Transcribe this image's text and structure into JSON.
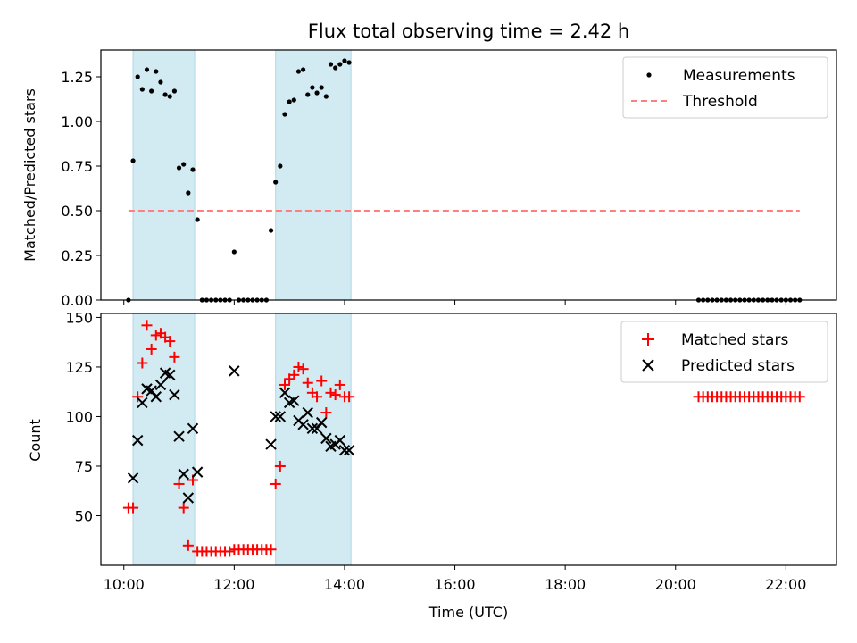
{
  "chart_data": [
    {
      "type": "scatter",
      "title": "Flux total observing time = 2.42 h",
      "xlabel": "",
      "ylabel": "Matched/Predicted stars",
      "xlim": [
        "09:35",
        "22:55"
      ],
      "ylim": [
        0,
        1.4
      ],
      "yticks": [
        0.0,
        0.25,
        0.5,
        0.75,
        1.0,
        1.25
      ],
      "ytick_labels": [
        "0.00",
        "0.25",
        "0.50",
        "0.75",
        "1.00",
        "1.25"
      ],
      "shaded_intervals": [
        [
          "10:10",
          "11:17"
        ],
        [
          "12:45",
          "14:07"
        ]
      ],
      "threshold": {
        "value": 0.5,
        "from": "10:05",
        "to": "22:15"
      },
      "legend": {
        "position": "upper right",
        "entries": [
          "Measurements",
          "Threshold"
        ]
      },
      "series": [
        {
          "name": "Measurements",
          "marker": "dot",
          "color": "#000000",
          "points": [
            [
              "10:05",
              0.0
            ],
            [
              "10:10",
              0.78
            ],
            [
              "10:15",
              1.25
            ],
            [
              "10:20",
              1.18
            ],
            [
              "10:25",
              1.29
            ],
            [
              "10:30",
              1.17
            ],
            [
              "10:35",
              1.28
            ],
            [
              "10:40",
              1.22
            ],
            [
              "10:45",
              1.15
            ],
            [
              "10:50",
              1.14
            ],
            [
              "10:55",
              1.17
            ],
            [
              "11:00",
              0.74
            ],
            [
              "11:05",
              0.76
            ],
            [
              "11:10",
              0.6
            ],
            [
              "11:15",
              0.73
            ],
            [
              "11:20",
              0.45
            ],
            [
              "11:25",
              0.0
            ],
            [
              "11:30",
              0.0
            ],
            [
              "11:35",
              0.0
            ],
            [
              "11:40",
              0.0
            ],
            [
              "11:45",
              0.0
            ],
            [
              "11:50",
              0.0
            ],
            [
              "11:55",
              0.0
            ],
            [
              "12:00",
              0.27
            ],
            [
              "12:05",
              0.0
            ],
            [
              "12:10",
              0.0
            ],
            [
              "12:15",
              0.0
            ],
            [
              "12:20",
              0.0
            ],
            [
              "12:25",
              0.0
            ],
            [
              "12:30",
              0.0
            ],
            [
              "12:35",
              0.0
            ],
            [
              "12:40",
              0.39
            ],
            [
              "12:45",
              0.66
            ],
            [
              "12:50",
              0.75
            ],
            [
              "12:55",
              1.04
            ],
            [
              "13:00",
              1.11
            ],
            [
              "13:05",
              1.12
            ],
            [
              "13:10",
              1.28
            ],
            [
              "13:15",
              1.29
            ],
            [
              "13:20",
              1.15
            ],
            [
              "13:25",
              1.19
            ],
            [
              "13:30",
              1.16
            ],
            [
              "13:35",
              1.19
            ],
            [
              "13:40",
              1.14
            ],
            [
              "13:45",
              1.32
            ],
            [
              "13:50",
              1.3
            ],
            [
              "13:55",
              1.32
            ],
            [
              "14:00",
              1.34
            ],
            [
              "14:05",
              1.33
            ],
            [
              "20:25",
              0.0
            ],
            [
              "20:30",
              0.0
            ],
            [
              "20:35",
              0.0
            ],
            [
              "20:40",
              0.0
            ],
            [
              "20:45",
              0.0
            ],
            [
              "20:50",
              0.0
            ],
            [
              "20:55",
              0.0
            ],
            [
              "21:00",
              0.0
            ],
            [
              "21:05",
              0.0
            ],
            [
              "21:10",
              0.0
            ],
            [
              "21:15",
              0.0
            ],
            [
              "21:20",
              0.0
            ],
            [
              "21:25",
              0.0
            ],
            [
              "21:30",
              0.0
            ],
            [
              "21:35",
              0.0
            ],
            [
              "21:40",
              0.0
            ],
            [
              "21:45",
              0.0
            ],
            [
              "21:50",
              0.0
            ],
            [
              "21:55",
              0.0
            ],
            [
              "22:00",
              0.0
            ],
            [
              "22:05",
              0.0
            ],
            [
              "22:10",
              0.0
            ],
            [
              "22:15",
              0.0
            ]
          ]
        }
      ],
      "colors": {
        "measurements": "#000000",
        "threshold": "#ff7f7f",
        "shade": "#add8e6"
      }
    },
    {
      "type": "scatter",
      "title": "",
      "xlabel": "Time (UTC)",
      "ylabel": "Count",
      "xlim": [
        "09:35",
        "22:55"
      ],
      "ylim": [
        25,
        152
      ],
      "yticks": [
        50,
        75,
        100,
        125,
        150
      ],
      "ytick_labels": [
        "50",
        "75",
        "100",
        "125",
        "150"
      ],
      "xticks": [
        "10:00",
        "12:00",
        "14:00",
        "16:00",
        "18:00",
        "20:00",
        "22:00"
      ],
      "xtick_labels": [
        "10:00",
        "12:00",
        "14:00",
        "16:00",
        "18:00",
        "20:00",
        "22:00"
      ],
      "shaded_intervals": [
        [
          "10:10",
          "11:17"
        ],
        [
          "12:45",
          "14:07"
        ]
      ],
      "legend": {
        "position": "upper right",
        "entries": [
          "Matched stars",
          "Predicted stars"
        ]
      },
      "series": [
        {
          "name": "Matched stars",
          "marker": "plus",
          "color": "#ff0000",
          "points": [
            [
              "10:05",
              54
            ],
            [
              "10:10",
              54
            ],
            [
              "10:15",
              110
            ],
            [
              "10:20",
              127
            ],
            [
              "10:25",
              146
            ],
            [
              "10:30",
              134
            ],
            [
              "10:35",
              141
            ],
            [
              "10:40",
              142
            ],
            [
              "10:45",
              140
            ],
            [
              "10:50",
              138
            ],
            [
              "10:55",
              130
            ],
            [
              "11:00",
              66
            ],
            [
              "11:05",
              54
            ],
            [
              "11:10",
              35
            ],
            [
              "11:15",
              68
            ],
            [
              "11:20",
              32
            ],
            [
              "11:25",
              32
            ],
            [
              "11:30",
              32
            ],
            [
              "11:35",
              32
            ],
            [
              "11:40",
              32
            ],
            [
              "11:45",
              32
            ],
            [
              "11:50",
              32
            ],
            [
              "11:55",
              32
            ],
            [
              "12:00",
              33
            ],
            [
              "12:05",
              33
            ],
            [
              "12:10",
              33
            ],
            [
              "12:15",
              33
            ],
            [
              "12:20",
              33
            ],
            [
              "12:25",
              33
            ],
            [
              "12:30",
              33
            ],
            [
              "12:35",
              33
            ],
            [
              "12:40",
              33
            ],
            [
              "12:45",
              66
            ],
            [
              "12:50",
              75
            ],
            [
              "12:55",
              116
            ],
            [
              "13:00",
              119
            ],
            [
              "13:05",
              121
            ],
            [
              "13:10",
              125
            ],
            [
              "13:15",
              124
            ],
            [
              "13:20",
              117
            ],
            [
              "13:25",
              112
            ],
            [
              "13:30",
              110
            ],
            [
              "13:35",
              118
            ],
            [
              "13:40",
              102
            ],
            [
              "13:45",
              112
            ],
            [
              "13:50",
              111
            ],
            [
              "13:55",
              116
            ],
            [
              "14:00",
              110
            ],
            [
              "14:05",
              110
            ],
            [
              "20:25",
              110
            ],
            [
              "20:30",
              110
            ],
            [
              "20:35",
              110
            ],
            [
              "20:40",
              110
            ],
            [
              "20:45",
              110
            ],
            [
              "20:50",
              110
            ],
            [
              "20:55",
              110
            ],
            [
              "21:00",
              110
            ],
            [
              "21:05",
              110
            ],
            [
              "21:10",
              110
            ],
            [
              "21:15",
              110
            ],
            [
              "21:20",
              110
            ],
            [
              "21:25",
              110
            ],
            [
              "21:30",
              110
            ],
            [
              "21:35",
              110
            ],
            [
              "21:40",
              110
            ],
            [
              "21:45",
              110
            ],
            [
              "21:50",
              110
            ],
            [
              "21:55",
              110
            ],
            [
              "22:00",
              110
            ],
            [
              "22:05",
              110
            ],
            [
              "22:10",
              110
            ],
            [
              "22:15",
              110
            ]
          ]
        },
        {
          "name": "Predicted stars",
          "marker": "x",
          "color": "#000000",
          "points": [
            [
              "10:10",
              69
            ],
            [
              "10:15",
              88
            ],
            [
              "10:20",
              107
            ],
            [
              "10:25",
              114
            ],
            [
              "10:30",
              113
            ],
            [
              "10:35",
              110
            ],
            [
              "10:40",
              116
            ],
            [
              "10:45",
              122
            ],
            [
              "10:50",
              121
            ],
            [
              "10:55",
              111
            ],
            [
              "11:00",
              90
            ],
            [
              "11:05",
              71
            ],
            [
              "11:10",
              59
            ],
            [
              "11:15",
              94
            ],
            [
              "11:20",
              72
            ],
            [
              "12:00",
              123
            ],
            [
              "12:40",
              86
            ],
            [
              "12:45",
              100
            ],
            [
              "12:50",
              100
            ],
            [
              "12:55",
              112
            ],
            [
              "13:00",
              107
            ],
            [
              "13:05",
              108
            ],
            [
              "13:10",
              98
            ],
            [
              "13:15",
              96
            ],
            [
              "13:20",
              102
            ],
            [
              "13:25",
              94
            ],
            [
              "13:30",
              94
            ],
            [
              "13:35",
              97
            ],
            [
              "13:40",
              89
            ],
            [
              "13:45",
              85
            ],
            [
              "13:50",
              86
            ],
            [
              "13:55",
              88
            ],
            [
              "14:00",
              83
            ],
            [
              "14:05",
              83
            ]
          ]
        }
      ],
      "colors": {
        "matched": "#ff0000",
        "predicted": "#000000",
        "shade": "#add8e6"
      }
    }
  ]
}
